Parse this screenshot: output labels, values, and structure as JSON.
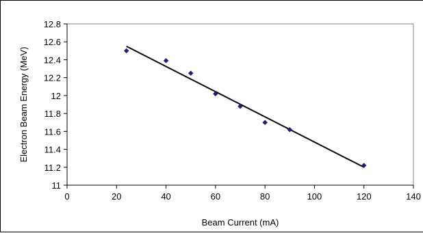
{
  "chart_data": {
    "type": "scatter",
    "xlabel": "Beam Current (mA)",
    "ylabel": "Electron Beam Energy (MeV)",
    "xlim": [
      0,
      140
    ],
    "ylim": [
      11,
      12.8
    ],
    "x_ticks": [
      0,
      20,
      40,
      60,
      80,
      100,
      120,
      140
    ],
    "y_ticks": [
      11,
      11.2,
      11.4,
      11.6,
      11.8,
      12,
      12.2,
      12.4,
      12.6,
      12.8
    ],
    "x_tick_labels": [
      "0",
      "20",
      "40",
      "60",
      "80",
      "100",
      "120",
      "140"
    ],
    "y_tick_labels": [
      "11",
      "11.2",
      "11.4",
      "11.6",
      "11.8",
      "12",
      "12.2",
      "12.4",
      "12.6",
      "12.8"
    ],
    "grid": false,
    "legend": "none",
    "series": [
      {
        "points": [
          {
            "x": 24,
            "y": 12.5
          },
          {
            "x": 40,
            "y": 12.39
          },
          {
            "x": 50,
            "y": 12.25
          },
          {
            "x": 60,
            "y": 12.02
          },
          {
            "x": 70,
            "y": 11.88
          },
          {
            "x": 80,
            "y": 11.7
          },
          {
            "x": 90,
            "y": 11.62
          },
          {
            "x": 120,
            "y": 11.22
          }
        ],
        "color": "#1f1f7a"
      }
    ],
    "trendline": {
      "type": "linear",
      "x_start": 24,
      "y_start": 12.55,
      "x_end": 120,
      "y_end": 11.2,
      "color": "#000000"
    }
  }
}
